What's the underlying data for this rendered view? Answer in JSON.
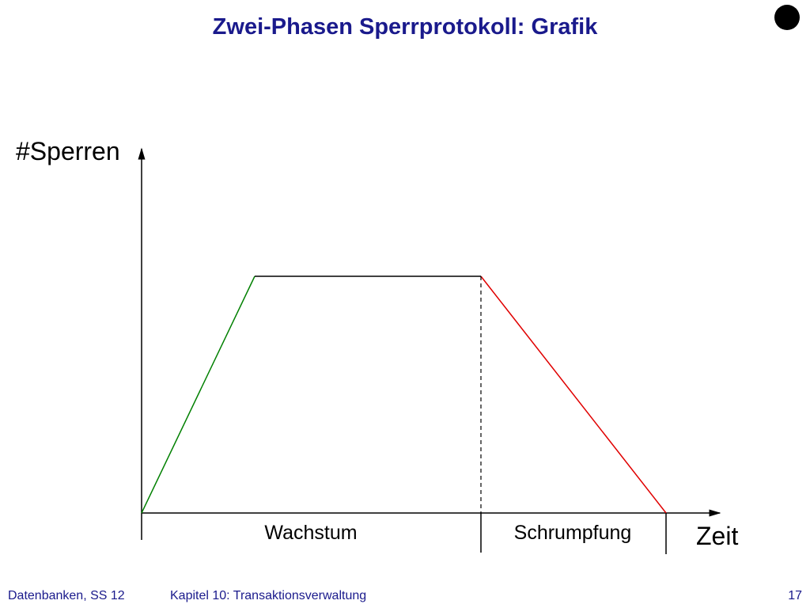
{
  "header": {
    "title": "Zwei-Phasen Sperrprotokoll: Grafik"
  },
  "diagram": {
    "y_axis_label": "#Sperren",
    "x_axis_label": "Zeit",
    "phases": [
      "Wachstum",
      "Schrumpfung"
    ]
  },
  "footer": {
    "course": "Datenbanken, SS 12",
    "chapter": "Kapitel 10: Transaktionsverwaltung",
    "page": "17"
  }
}
